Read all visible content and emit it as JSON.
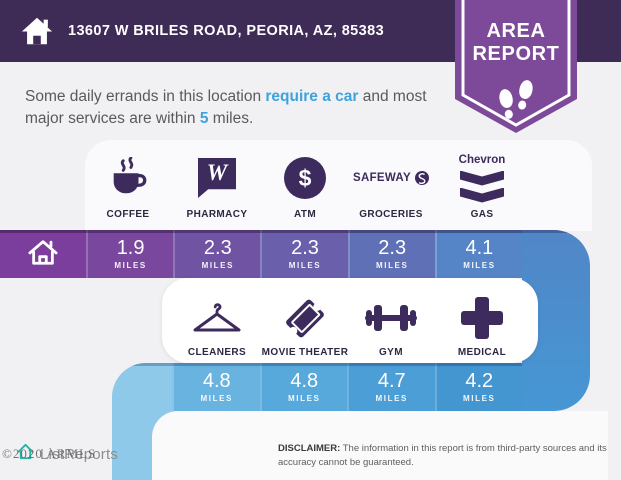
{
  "page": {
    "bg": "#F1F1F3"
  },
  "header": {
    "address": "13607 W BRILES ROAD, PEORIA, AZ, 85383",
    "bg": "#3E2B56",
    "badge": {
      "line1": "AREA",
      "line2": "REPORT",
      "bg": "#7D4A99"
    }
  },
  "intro": {
    "part1": "Some daily errands in this location ",
    "highlight1": "require a car",
    "part2": " and most major services are within ",
    "highlight2": "5",
    "part3": " miles.",
    "highlight_color": "#3FA2DC"
  },
  "units_label": "MILES",
  "icon_color": "#3D2B5E",
  "rows": {
    "row1": {
      "home_color": "#7C3E9C",
      "items": [
        {
          "label": "COFFEE",
          "icon": "coffee-icon",
          "miles": "1.9",
          "color": "#7A479E"
        },
        {
          "label": "PHARMACY",
          "icon": "walgreens-w-icon",
          "miles": "2.3",
          "color": "#7153A4",
          "brand_text": "W"
        },
        {
          "label": "ATM",
          "icon": "dollar-circle-icon",
          "miles": "2.3",
          "color": "#6A5FAB",
          "brand_text": "$"
        },
        {
          "label": "GROCERIES",
          "icon": "safeway-logo-icon",
          "miles": "2.3",
          "color": "#6070B6",
          "brand_text": "SAFEWAY"
        },
        {
          "label": "GAS",
          "icon": "chevron-logo-icon",
          "miles": "4.1",
          "color": "#5585C7",
          "brand_text": "Chevron"
        }
      ]
    },
    "row2": {
      "tail_color": "#8FC9E9",
      "items": [
        {
          "label": "CLEANERS",
          "icon": "hanger-icon",
          "miles": "4.8",
          "color": "#68B3DF"
        },
        {
          "label": "MOVIE THEATER",
          "icon": "ticket-icon",
          "miles": "4.8",
          "color": "#57A8DB"
        },
        {
          "label": "GYM",
          "icon": "dumbbell-icon",
          "miles": "4.7",
          "color": "#4C9ED6"
        },
        {
          "label": "MEDICAL",
          "icon": "medical-cross-icon",
          "miles": "4.2",
          "color": "#4496D1"
        }
      ]
    }
  },
  "path_colors": {
    "connector_top": "#5186C7",
    "connector_bottom": "#4697D4",
    "strip": "#8FC9E9"
  },
  "footer": {
    "watermark": "©2020 ARMLS",
    "logo_text": "ListReports",
    "disclaimer_label": "DISCLAIMER:",
    "disclaimer_text": " The information in this report is from third-party sources and its accuracy cannot be guaranteed."
  }
}
